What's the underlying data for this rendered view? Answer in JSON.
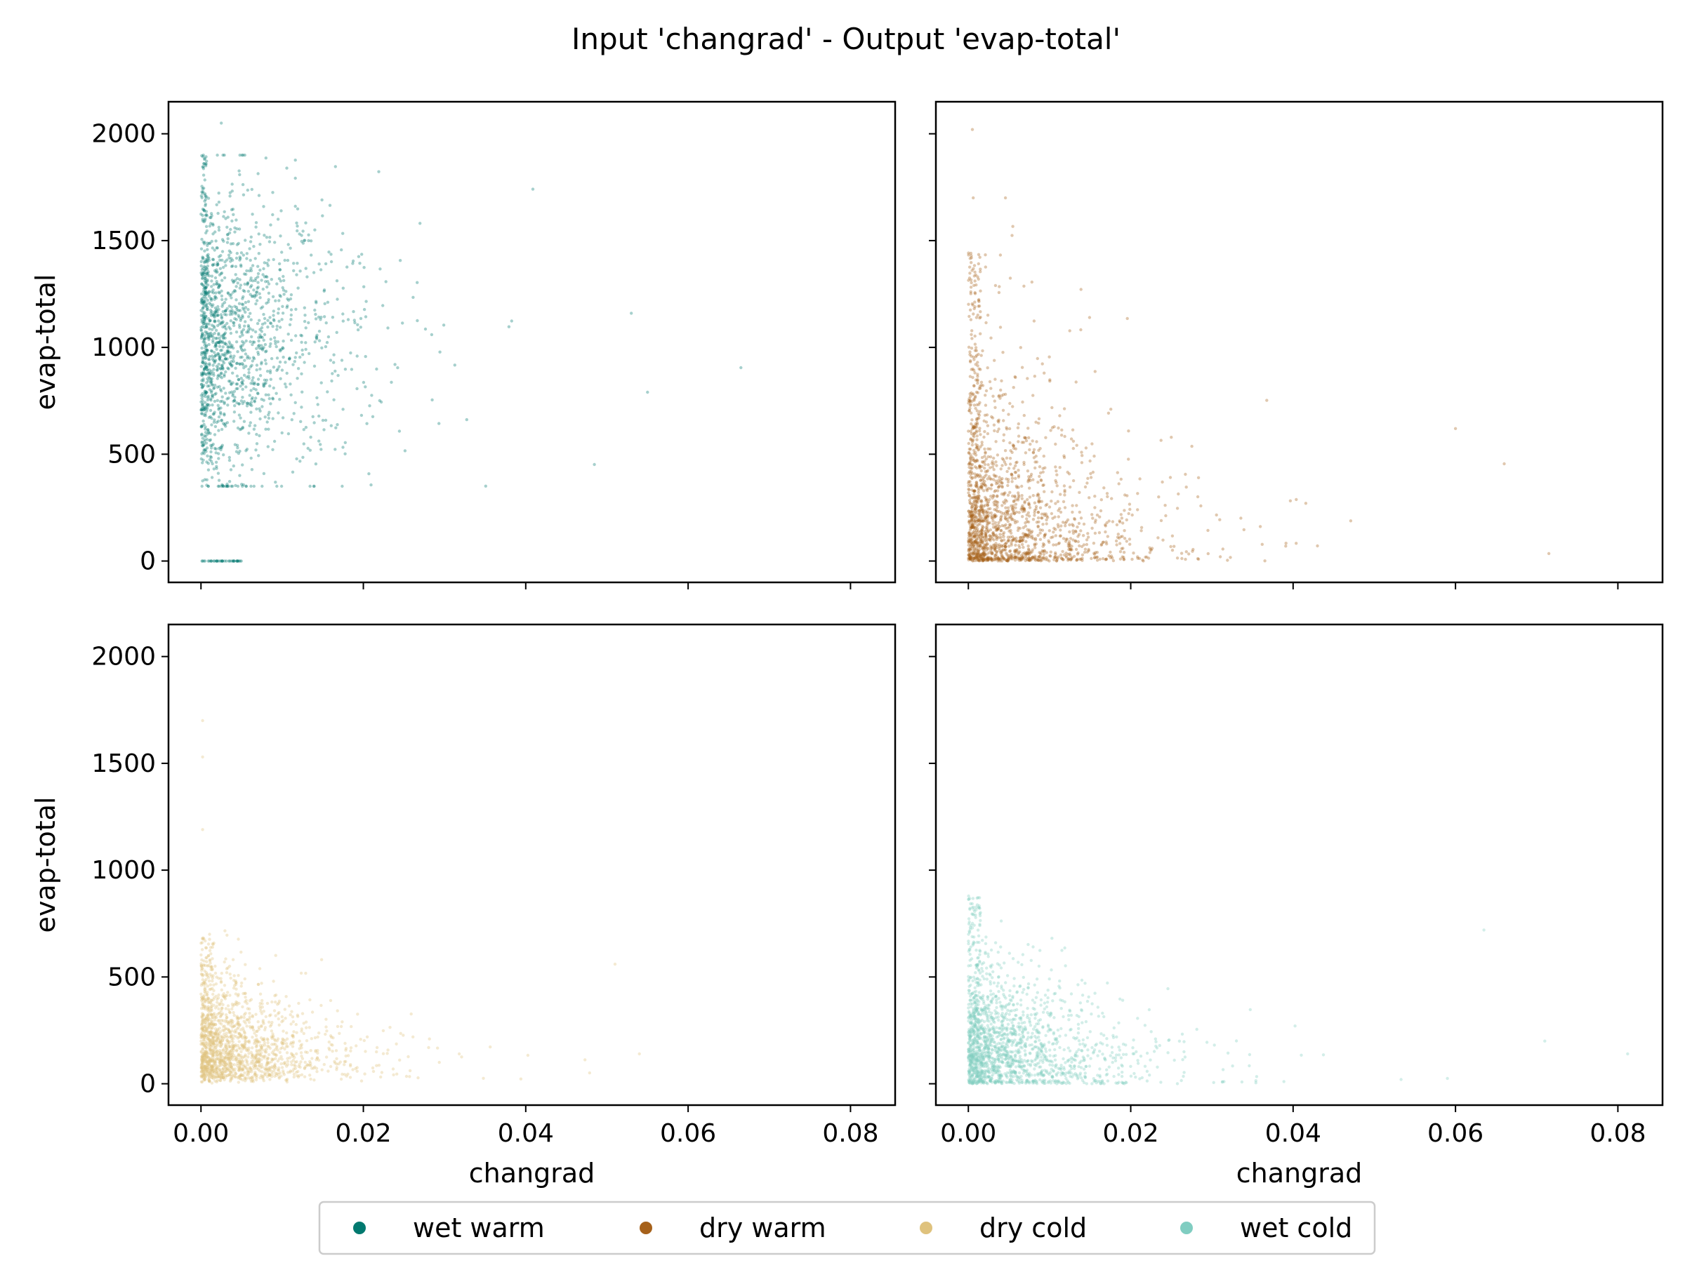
{
  "figure": {
    "title": "Input 'changrad' - Output 'evap-total'"
  },
  "chart_data": [
    {
      "type": "scatter",
      "panel": "top-left",
      "series": [
        {
          "name": "wet warm",
          "color": "#01796f"
        }
      ],
      "xlabel": "",
      "ylabel": "evap-total",
      "xlim": [
        -0.004,
        0.0855
      ],
      "ylim": [
        -100,
        2150
      ],
      "xticks": [
        0.0,
        0.02,
        0.04,
        0.06,
        0.08
      ],
      "yticks": [
        0,
        500,
        1000,
        1500,
        2000
      ],
      "show_xticklabels": false,
      "show_yticklabels": true,
      "distribution": {
        "y_min": 350,
        "y_max": 1900,
        "y_max_outlier": 2050,
        "x_max": 0.067,
        "zero_cluster_x_max": 0.005
      }
    },
    {
      "type": "scatter",
      "panel": "top-right",
      "series": [
        {
          "name": "dry warm",
          "color": "#a6611a"
        }
      ],
      "xlabel": "",
      "ylabel": "",
      "xlim": [
        -0.004,
        0.0855
      ],
      "ylim": [
        -100,
        2150
      ],
      "xticks": [
        0.0,
        0.02,
        0.04,
        0.06,
        0.08
      ],
      "yticks": [
        0,
        500,
        1000,
        1500,
        2000
      ],
      "show_xticklabels": false,
      "show_yticklabels": false,
      "distribution": {
        "y_min": 0,
        "y_max": 1700,
        "y_max_outlier": 2020,
        "x_max": 0.072
      }
    },
    {
      "type": "scatter",
      "panel": "bottom-left",
      "series": [
        {
          "name": "dry cold",
          "color": "#dfc27d"
        }
      ],
      "xlabel": "changrad",
      "ylabel": "evap-total",
      "xlim": [
        -0.004,
        0.0855
      ],
      "ylim": [
        -100,
        2150
      ],
      "xticks": [
        0.0,
        0.02,
        0.04,
        0.06,
        0.08
      ],
      "yticks": [
        0,
        500,
        1000,
        1500,
        2000
      ],
      "show_xticklabels": true,
      "show_yticklabels": true,
      "distribution": {
        "y_min": 0,
        "y_max": 900,
        "y_max_outlier": 1700,
        "x_max": 0.055
      }
    },
    {
      "type": "scatter",
      "panel": "bottom-right",
      "series": [
        {
          "name": "wet cold",
          "color": "#80cdc1"
        }
      ],
      "xlabel": "changrad",
      "ylabel": "",
      "xlim": [
        -0.004,
        0.0855
      ],
      "ylim": [
        -100,
        2150
      ],
      "xticks": [
        0.0,
        0.02,
        0.04,
        0.06,
        0.08
      ],
      "yticks": [
        0,
        500,
        1000,
        1500,
        2000
      ],
      "show_xticklabels": true,
      "show_yticklabels": false,
      "distribution": {
        "y_min": 0,
        "y_max": 950,
        "x_max": 0.081
      }
    }
  ],
  "x_tick_labels": [
    "0.00",
    "0.02",
    "0.04",
    "0.06",
    "0.08"
  ],
  "y_tick_labels": [
    "0",
    "500",
    "1000",
    "1500",
    "2000"
  ],
  "legend": {
    "placement": "bottom-center",
    "items": [
      {
        "label": "wet warm",
        "color": "#01796f"
      },
      {
        "label": "dry warm",
        "color": "#a6611a"
      },
      {
        "label": "dry cold",
        "color": "#dfc27d"
      },
      {
        "label": "wet cold",
        "color": "#80cdc1"
      }
    ]
  }
}
